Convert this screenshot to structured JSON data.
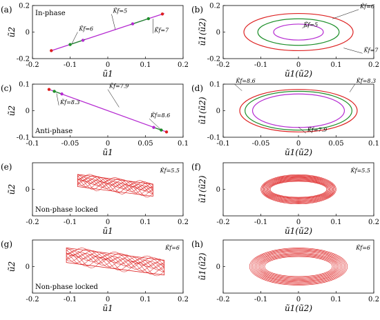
{
  "colors": {
    "red": "#dd2020",
    "green": "#1d8f2a",
    "purple": "#b52ad1",
    "black": "#000000",
    "inphase_line": "#b52ad1"
  },
  "chart_data": [
    {
      "id": "a",
      "type": "line",
      "panel_label": "(a)",
      "text": "In-phase",
      "xlabel": "ũ1",
      "ylabel": "ũ2",
      "xlim": [
        -0.2,
        0.2
      ],
      "ylim": [
        -0.2,
        0.2
      ],
      "xticks": [
        "-0.2",
        "-0.1",
        "0",
        "0.1",
        "0.2"
      ],
      "yticks": [
        "-0.2",
        "0",
        "0.2"
      ],
      "segments": [
        {
          "name": "",
          "color": "#b52ad1",
          "x": [
            -0.15,
            0.15
          ],
          "y": [
            -0.14,
            0.14
          ]
        },
        {
          "name": "",
          "color": "#1d8f2a",
          "x": [
            -0.1,
            -0.06
          ],
          "y": [
            -0.094,
            -0.056
          ]
        },
        {
          "name": "",
          "color": "#1d8f2a",
          "x": [
            0.06,
            0.11
          ],
          "y": [
            0.056,
            0.103
          ]
        }
      ],
      "points": [
        {
          "x": -0.15,
          "y": -0.14,
          "color": "#dd2020"
        },
        {
          "x": 0.145,
          "y": 0.136,
          "color": "#dd2020"
        },
        {
          "x": -0.1,
          "y": -0.094,
          "color": "#1d8f2a"
        },
        {
          "x": 0.108,
          "y": 0.101,
          "color": "#1d8f2a"
        },
        {
          "x": -0.066,
          "y": -0.062,
          "color": "#b52ad1"
        },
        {
          "x": 0.066,
          "y": 0.062,
          "color": "#b52ad1"
        }
      ],
      "annotations": [
        {
          "text": "K̃f=6",
          "x": -0.08,
          "y": 0.0,
          "tx": -0.095,
          "ty": -0.085
        },
        {
          "text": "K̃f=5",
          "x": 0.01,
          "y": 0.135,
          "tx": 0.02,
          "ty": 0.02
        },
        {
          "text": "K̃f=7",
          "x": 0.12,
          "y": -0.01,
          "tx": 0.12,
          "ty": 0.1
        }
      ]
    },
    {
      "id": "b",
      "type": "line",
      "panel_label": "(b)",
      "text": "",
      "xlabel": "ũ1(ũ2)",
      "ylabel": "ũ1(ũ2)",
      "xlim": [
        -0.2,
        0.2
      ],
      "ylim": [
        -0.2,
        0.2
      ],
      "xticks": [
        "-0.2",
        "-0.1",
        "0",
        "0.1",
        "0.2"
      ],
      "yticks": [
        "-0.2",
        "0",
        "0.2"
      ],
      "ellipses": [
        {
          "name": "",
          "color": "#dd2020",
          "rx": 0.145,
          "ry": 0.14
        },
        {
          "name": "",
          "color": "#1d8f2a",
          "rx": 0.108,
          "ry": 0.1
        },
        {
          "name": "",
          "color": "#b52ad1",
          "rx": 0.066,
          "ry": 0.06
        }
      ],
      "annotations": [
        {
          "text": "K̃f=6",
          "x": 0.16,
          "y": 0.17,
          "tx": 0.09,
          "ty": 0.1
        },
        {
          "text": "K̃f=5",
          "x": 0.01,
          "y": 0.03,
          "tx": 0.03,
          "ty": 0.055
        },
        {
          "text": "K̃f=7",
          "x": 0.17,
          "y": -0.16,
          "tx": 0.12,
          "ty": -0.12
        }
      ]
    },
    {
      "id": "c",
      "type": "line",
      "panel_label": "(c)",
      "text": "Anti-phase",
      "xlabel": "ũ1",
      "ylabel": "ũ2",
      "xlim": [
        -0.1,
        0.1
      ],
      "ylim": [
        -0.1,
        0.1
      ],
      "xticks": [
        "-0.1",
        "-0.05",
        "0",
        "0.05",
        "0.1"
      ],
      "yticks": [
        "-0.1",
        "0",
        "0.1"
      ],
      "segments": [
        {
          "name": "",
          "color": "#b52ad1",
          "x": [
            -0.078,
            0.078
          ],
          "y": [
            0.08,
            -0.08
          ]
        },
        {
          "name": "",
          "color": "#1d8f2a",
          "x": [
            -0.073,
            -0.062
          ],
          "y": [
            0.075,
            0.064
          ]
        },
        {
          "name": "",
          "color": "#1d8f2a",
          "x": [
            0.062,
            0.073
          ],
          "y": [
            -0.064,
            -0.075
          ]
        }
      ],
      "points": [
        {
          "x": -0.078,
          "y": 0.08,
          "color": "#dd2020"
        },
        {
          "x": 0.078,
          "y": -0.08,
          "color": "#dd2020"
        },
        {
          "x": -0.071,
          "y": 0.073,
          "color": "#1d8f2a"
        },
        {
          "x": 0.071,
          "y": -0.073,
          "color": "#1d8f2a"
        },
        {
          "x": -0.061,
          "y": 0.063,
          "color": "#b52ad1"
        },
        {
          "x": 0.061,
          "y": -0.063,
          "color": "#b52ad1"
        }
      ],
      "annotations": [
        {
          "text": "K̃f=7.9",
          "x": 0.0,
          "y": 0.08,
          "tx": 0.015,
          "ty": 0.013
        },
        {
          "text": "K̃f=8.3",
          "x": -0.065,
          "y": 0.02,
          "tx": -0.068,
          "ty": 0.065
        },
        {
          "text": "K̃f=8.6",
          "x": 0.055,
          "y": -0.03,
          "tx": 0.07,
          "ty": -0.07
        }
      ]
    },
    {
      "id": "d",
      "type": "line",
      "panel_label": "(d)",
      "text": "",
      "xlabel": "ũ1(ũ2)",
      "ylabel": "ũ1(ũ2)",
      "xlim": [
        -0.1,
        0.1
      ],
      "ylim": [
        -0.1,
        0.1
      ],
      "xticks": [
        "-0.1",
        "-0.05",
        "0",
        "0.05",
        "0.1"
      ],
      "yticks": [
        "-0.1",
        "0",
        "0.1"
      ],
      "ellipses": [
        {
          "name": "",
          "color": "#dd2020",
          "rx": 0.078,
          "ry": 0.08
        },
        {
          "name": "",
          "color": "#1d8f2a",
          "rx": 0.071,
          "ry": 0.073
        },
        {
          "name": "",
          "color": "#b52ad1",
          "rx": 0.061,
          "ry": 0.063
        }
      ],
      "annotations": [
        {
          "text": "K̃f=8.6",
          "x": -0.085,
          "y": 0.1,
          "tx": -0.075,
          "ty": 0.075
        },
        {
          "text": "K̃f=8.3",
          "x": 0.075,
          "y": 0.1,
          "tx": 0.068,
          "ty": 0.07
        },
        {
          "text": "K̃f=7.9",
          "x": 0.01,
          "y": -0.085,
          "tx": 0.0,
          "ty": -0.062
        }
      ]
    },
    {
      "id": "e",
      "type": "line",
      "panel_label": "(e)",
      "text": "Non-phase locked",
      "xlabel": "ũ1",
      "ylabel": "ũ2",
      "xlim": [
        -0.2,
        0.2
      ],
      "ylim": [
        -0.2,
        0.2
      ],
      "xticks": [
        "-0.2",
        "-0.1",
        "0",
        "0.1",
        "0.2"
      ],
      "yticks": [
        "0"
      ],
      "K_label": "K̃f=5.5",
      "band": {
        "color": "#dd2020",
        "x0": -0.08,
        "x1": 0.12,
        "halfwidth": 0.07,
        "slope": -0.35,
        "yshift": 0.07,
        "spread": 0.06,
        "n": 12
      }
    },
    {
      "id": "f",
      "type": "line",
      "panel_label": "(f)",
      "text": "",
      "xlabel": "ũ1(ũ2)",
      "ylabel": "ũ1(ũ2)",
      "xlim": [
        -0.2,
        0.2
      ],
      "ylim": [
        -0.2,
        0.2
      ],
      "xticks": [
        "-0.2",
        "-0.1",
        "0",
        "0.1",
        "0.2"
      ],
      "yticks": [
        "0"
      ],
      "K_label": "K̃f=5.5",
      "rings": {
        "color": "#dd2020",
        "rx": [
          0.075,
          0.1
        ],
        "ry": [
          0.06,
          0.11
        ],
        "n": 12
      }
    },
    {
      "id": "g",
      "type": "line",
      "panel_label": "(g)",
      "text": "Non-phase locked",
      "xlabel": "ũ1",
      "ylabel": "ũ2",
      "xlim": [
        -0.2,
        0.2
      ],
      "ylim": [
        -0.2,
        0.2
      ],
      "xticks": [
        "-0.2",
        "-0.1",
        "0",
        "0.1",
        "0.2"
      ],
      "yticks": [
        "0"
      ],
      "K_label": "K̃f=6",
      "band": {
        "color": "#dd2020",
        "x0": -0.11,
        "x1": 0.15,
        "halfwidth": 0.085,
        "slope": -0.4,
        "yshift": 0.09,
        "spread": 0.07,
        "n": 12
      }
    },
    {
      "id": "h",
      "type": "line",
      "panel_label": "(h)",
      "text": "",
      "xlabel": "ũ1(ũ2)",
      "ylabel": "ũ1(ũ2)",
      "xlim": [
        -0.2,
        0.2
      ],
      "ylim": [
        -0.2,
        0.2
      ],
      "xticks": [
        "-0.2",
        "-0.1",
        "0",
        "0.1",
        "0.2"
      ],
      "yticks": [
        "0"
      ],
      "K_label": "K̃f=6",
      "rings": {
        "color": "#dd2020",
        "rx": [
          0.09,
          0.13
        ],
        "ry": [
          0.075,
          0.14
        ],
        "n": 12
      }
    }
  ]
}
